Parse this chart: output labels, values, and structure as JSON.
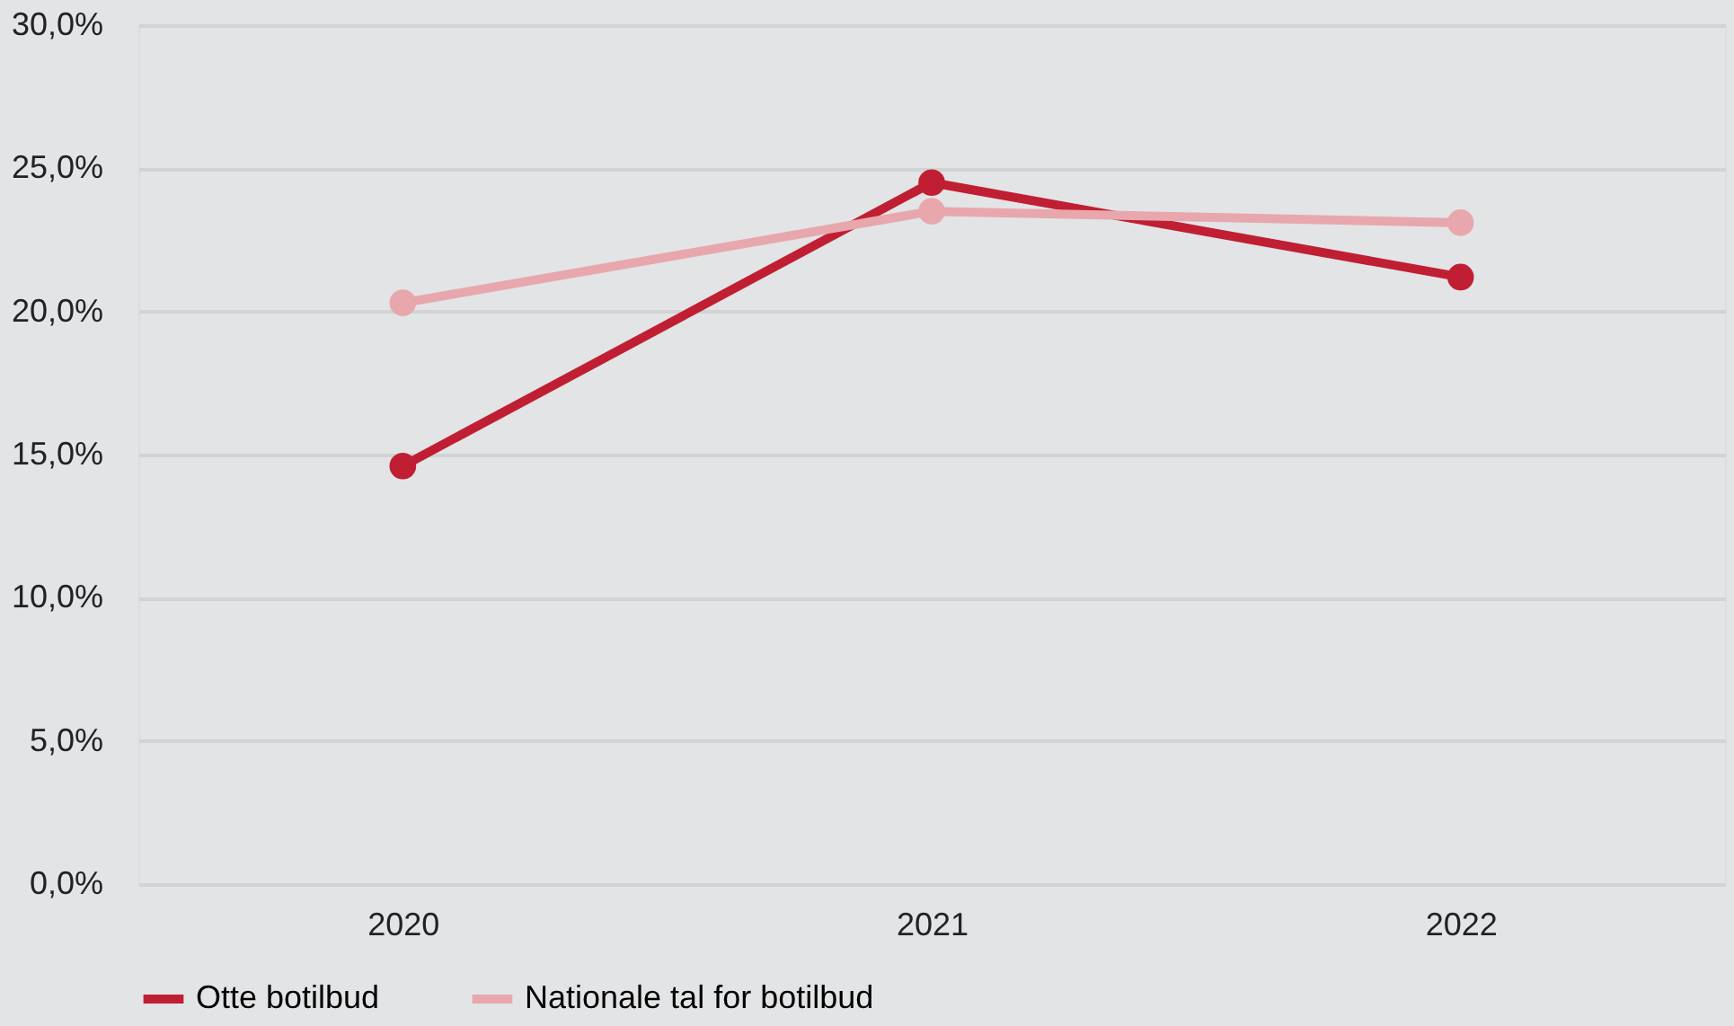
{
  "chart_data": {
    "type": "line",
    "categories": [
      "2020",
      "2021",
      "2022"
    ],
    "series": [
      {
        "name": "Otte botilbud",
        "color": "#c01f33",
        "values": [
          14.6,
          24.5,
          21.2
        ]
      },
      {
        "name": "Nationale tal for botilbud",
        "color": "#e8a7ac",
        "values": [
          20.3,
          23.5,
          23.1
        ]
      }
    ],
    "ylim": [
      0,
      30
    ],
    "yticks": [
      {
        "value": 0,
        "label": "0,0%"
      },
      {
        "value": 5,
        "label": "5,0%"
      },
      {
        "value": 10,
        "label": "10,0%"
      },
      {
        "value": 15,
        "label": "15,0%"
      },
      {
        "value": 20,
        "label": "20,0%"
      },
      {
        "value": 25,
        "label": "25,0%"
      },
      {
        "value": 30,
        "label": "30,0%"
      }
    ],
    "grid": "y",
    "legend": "bottom",
    "marker": "circle",
    "line_style": "solid"
  }
}
